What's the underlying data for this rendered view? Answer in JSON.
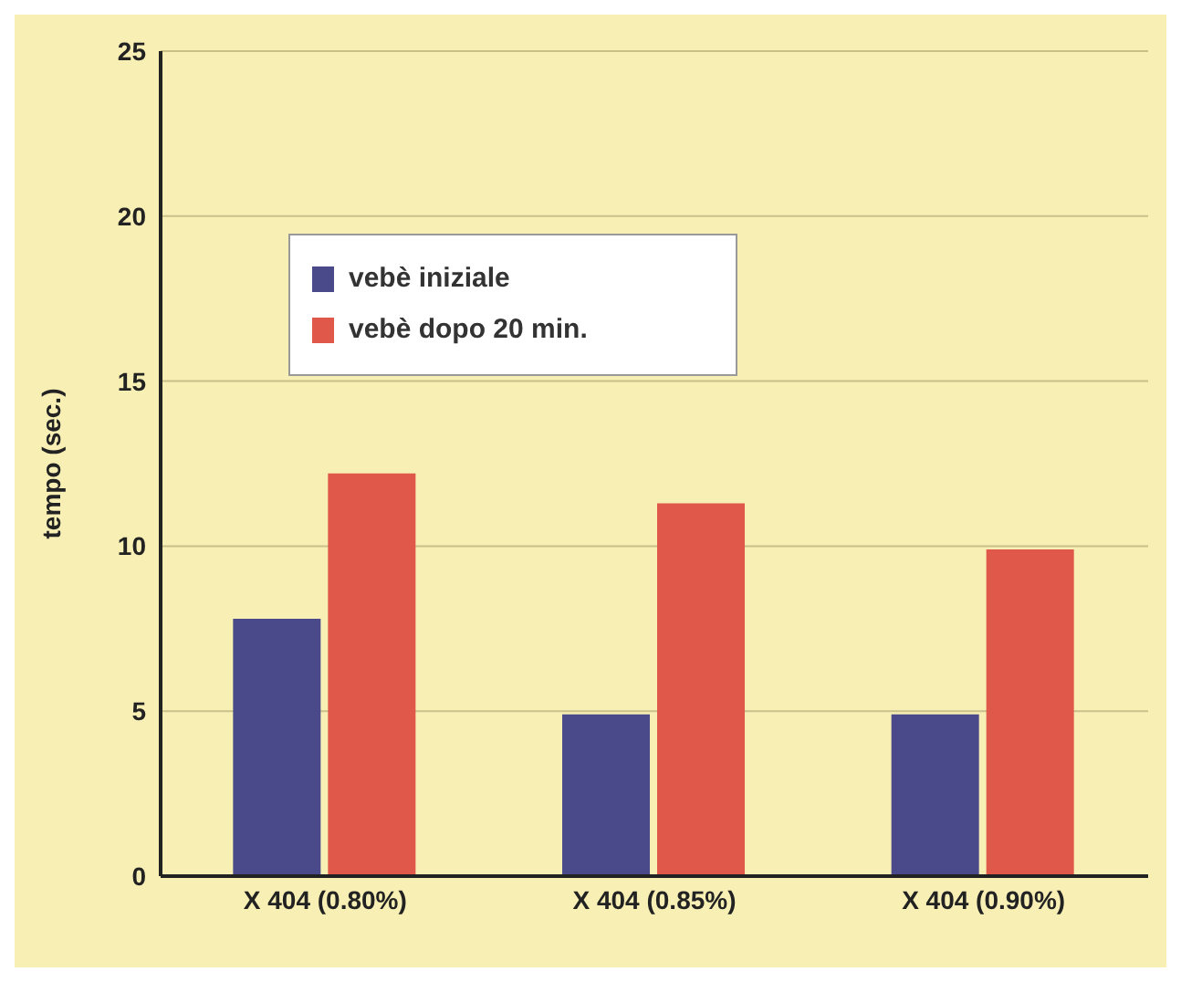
{
  "chart_data": {
    "type": "bar",
    "ylabel": "tempo (sec.)",
    "categories": [
      "X 404 (0.80%)",
      "X 404 (0.85%)",
      "X 404 (0.90%)"
    ],
    "series": [
      {
        "name": "vebè iniziale",
        "color": "#4a4a8a",
        "values": [
          7.8,
          4.9,
          4.9
        ]
      },
      {
        "name": "vebè dopo 20 min.",
        "color": "#e0584a",
        "values": [
          12.2,
          11.3,
          9.9
        ]
      }
    ],
    "ylim": [
      0,
      25
    ],
    "yticks": [
      0,
      5,
      10,
      15,
      20,
      25
    ],
    "grid": "y",
    "legend": "top left"
  }
}
